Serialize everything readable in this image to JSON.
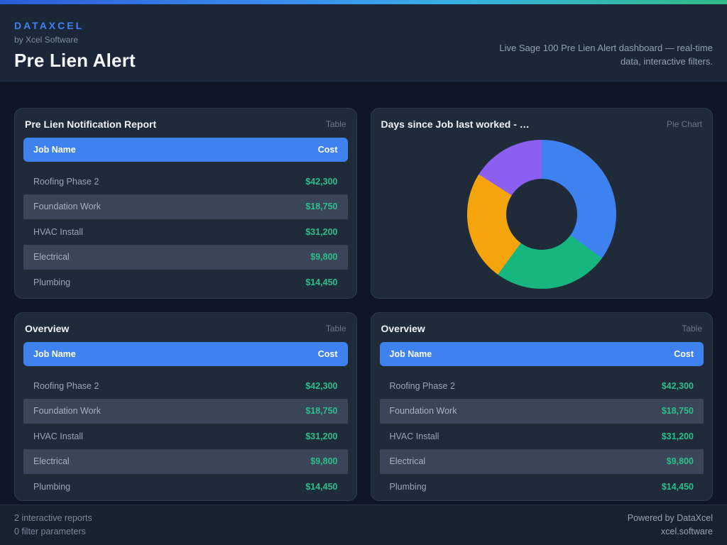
{
  "header": {
    "brand": "DATAXCEL",
    "byline": "by Xcel Software",
    "title": "Pre Lien Alert",
    "tagline": "Live Sage 100 Pre Lien Alert dashboard — real-time data, interactive filters."
  },
  "cards": [
    {
      "title": "Pre Lien Notification Report",
      "badge": "Table"
    },
    {
      "title": "Days since Job last worked - …",
      "badge": "Pie Chart"
    },
    {
      "title": "Overview",
      "badge": "Table"
    },
    {
      "title": "Overview",
      "badge": "Table"
    }
  ],
  "table": {
    "columns": [
      "Job Name",
      "Cost"
    ],
    "rows": [
      {
        "job": "Roofing Phase 2",
        "cost": "$42,300"
      },
      {
        "job": "Foundation Work",
        "cost": "$18,750"
      },
      {
        "job": "HVAC Install",
        "cost": "$31,200"
      },
      {
        "job": "Electrical",
        "cost": "$9,800"
      },
      {
        "job": "Plumbing",
        "cost": "$14,450"
      }
    ]
  },
  "chart_data": {
    "type": "pie",
    "title": "Days since Job last worked - …",
    "donut": true,
    "start_angle_deg": 0,
    "direction": "clockwise",
    "labels_visible": false,
    "legend": "none",
    "segments": [
      {
        "color_name": "blue",
        "color": "#3e82f0",
        "percent": 35
      },
      {
        "color_name": "green",
        "color": "#17b67f",
        "percent": 25
      },
      {
        "color_name": "orange",
        "color": "#f5a40c",
        "percent": 24
      },
      {
        "color_name": "purple",
        "color": "#8b5ff0",
        "percent": 16
      }
    ]
  },
  "colors": {
    "accent_blue": "#3e82f0",
    "money_green": "#2ebd8b",
    "header_bg": "#1b2739",
    "main_bg": "#0f1726",
    "card_bg": "#202b3a",
    "stripe_bg": "#3a4557",
    "gradient_left": "#2a5cd8",
    "gradient_right": "#2ebd85"
  },
  "footer": {
    "reports_count": "2 interactive reports",
    "filters_count": "0 filter parameters",
    "powered_by": "Powered by DataXcel",
    "site": "xcel.software"
  }
}
